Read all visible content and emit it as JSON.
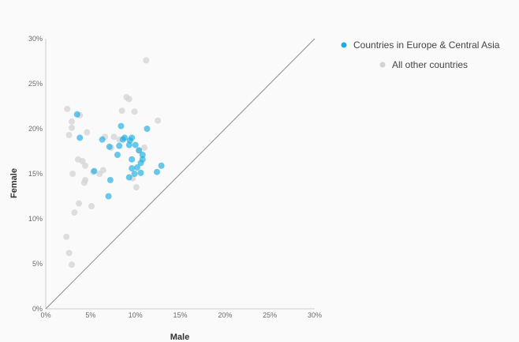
{
  "chart_data": {
    "type": "scatter",
    "title": "",
    "xlabel": "Male",
    "ylabel": "Female",
    "xlim": [
      0,
      30
    ],
    "ylim": [
      0,
      30
    ],
    "x_ticks": [
      "0%",
      "5%",
      "10%",
      "15%",
      "20%",
      "25%",
      "30%"
    ],
    "y_ticks": [
      "0%",
      "5%",
      "10%",
      "15%",
      "20%",
      "25%",
      "30%"
    ],
    "x_tick_values": [
      0,
      5,
      10,
      15,
      20,
      25,
      30
    ],
    "y_tick_values": [
      0,
      5,
      10,
      15,
      20,
      25,
      30
    ],
    "reference_line": "y = x",
    "grid": false,
    "legend_position": "top-right",
    "series": [
      {
        "name": "All other countries",
        "color": "#d3d3d3",
        "points": [
          [
            11.2,
            27.6
          ],
          [
            9.0,
            23.5
          ],
          [
            9.3,
            23.3
          ],
          [
            2.4,
            22.2
          ],
          [
            8.5,
            22.0
          ],
          [
            9.9,
            21.9
          ],
          [
            3.8,
            21.5
          ],
          [
            12.5,
            20.9
          ],
          [
            2.9,
            20.8
          ],
          [
            2.9,
            20.1
          ],
          [
            4.6,
            19.6
          ],
          [
            2.6,
            19.3
          ],
          [
            6.6,
            19.1
          ],
          [
            7.6,
            19.1
          ],
          [
            8.2,
            18.8
          ],
          [
            7.3,
            17.9
          ],
          [
            3.6,
            16.6
          ],
          [
            4.1,
            16.4
          ],
          [
            4.4,
            15.9
          ],
          [
            6.4,
            15.4
          ],
          [
            5.3,
            15.2
          ],
          [
            6.0,
            15.0
          ],
          [
            3.0,
            15.0
          ],
          [
            4.4,
            14.3
          ],
          [
            4.3,
            14.0
          ],
          [
            9.7,
            14.5
          ],
          [
            10.1,
            13.5
          ],
          [
            3.7,
            11.7
          ],
          [
            5.1,
            11.4
          ],
          [
            3.2,
            10.7
          ],
          [
            2.3,
            8.0
          ],
          [
            2.6,
            6.2
          ],
          [
            2.9,
            4.9
          ],
          [
            10.4,
            17.6
          ],
          [
            11.0,
            17.9
          ]
        ]
      },
      {
        "name": "Countries in Europe & Central Asia",
        "color": "#1aaee0",
        "points": [
          [
            3.5,
            21.6
          ],
          [
            11.3,
            20.0
          ],
          [
            8.4,
            20.3
          ],
          [
            3.8,
            19.0
          ],
          [
            9.6,
            19.0
          ],
          [
            9.4,
            18.7
          ],
          [
            8.8,
            19.0
          ],
          [
            8.6,
            18.8
          ],
          [
            6.3,
            18.8
          ],
          [
            7.1,
            18.0
          ],
          [
            8.2,
            18.1
          ],
          [
            9.3,
            18.2
          ],
          [
            10.0,
            18.2
          ],
          [
            10.4,
            17.6
          ],
          [
            8.0,
            17.1
          ],
          [
            10.8,
            17.1
          ],
          [
            10.8,
            16.6
          ],
          [
            9.6,
            16.6
          ],
          [
            10.6,
            16.2
          ],
          [
            10.2,
            15.7
          ],
          [
            12.9,
            15.9
          ],
          [
            9.6,
            15.6
          ],
          [
            5.4,
            15.3
          ],
          [
            12.4,
            15.2
          ],
          [
            10.6,
            15.1
          ],
          [
            9.9,
            15.0
          ],
          [
            9.3,
            14.6
          ],
          [
            7.2,
            14.3
          ],
          [
            7.0,
            12.5
          ]
        ]
      }
    ]
  },
  "legend": {
    "items": [
      {
        "label": "Countries in Europe & Central Asia",
        "color": "#1aaee0"
      },
      {
        "label": "All other countries",
        "color": "#d3d3d3"
      }
    ]
  }
}
